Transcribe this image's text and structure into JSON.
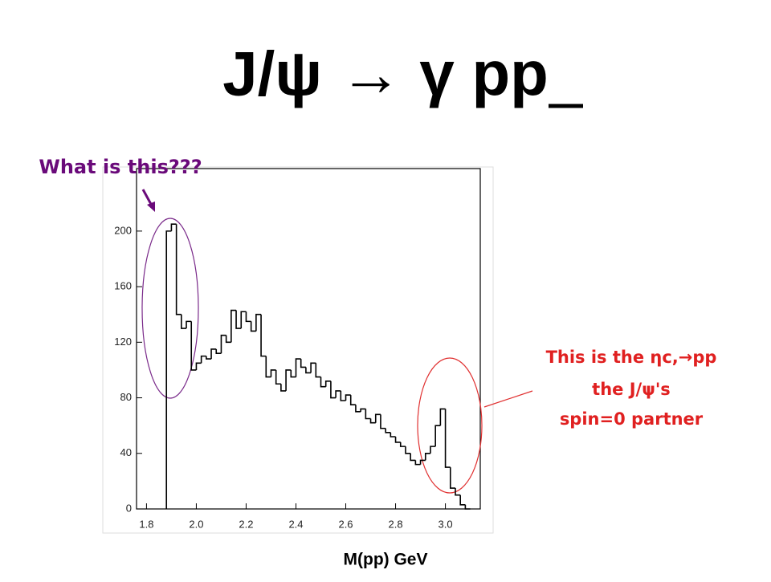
{
  "chart_data": {
    "type": "histogram",
    "title": "J/ψ → γ pp",
    "xlabel": "M(pp) GeV",
    "annotations": [
      "What is this???",
      "This is the ηc,→pp",
      "the J/ψ's",
      "spin=0 partner"
    ],
    "bins": [
      1.88,
      1.9,
      1.92,
      1.94,
      1.96,
      1.98,
      2.0,
      2.02,
      2.04,
      2.06,
      2.08,
      2.1,
      2.12,
      2.14,
      2.16,
      2.18,
      2.2,
      2.22,
      2.24,
      2.26,
      2.28,
      2.3,
      2.32,
      2.34,
      2.36,
      2.38,
      2.4,
      2.42,
      2.44,
      2.46,
      2.48,
      2.5,
      2.52,
      2.54,
      2.56,
      2.58,
      2.6,
      2.62,
      2.64,
      2.66,
      2.68,
      2.7,
      2.72,
      2.74,
      2.76,
      2.78,
      2.8,
      2.82,
      2.84,
      2.86,
      2.88,
      2.9,
      2.92,
      2.94,
      2.96,
      2.98,
      3.0,
      3.02,
      3.04,
      3.06,
      3.08,
      3.1
    ],
    "values": [
      200,
      205,
      140,
      130,
      135,
      100,
      105,
      110,
      108,
      115,
      112,
      125,
      120,
      143,
      130,
      142,
      135,
      128,
      140,
      110,
      95,
      100,
      90,
      85,
      100,
      95,
      108,
      102,
      98,
      105,
      95,
      88,
      92,
      80,
      85,
      78,
      82,
      75,
      70,
      72,
      65,
      62,
      68,
      58,
      55,
      52,
      48,
      45,
      40,
      35,
      32,
      35,
      40,
      45,
      60,
      72,
      30,
      15,
      10,
      3,
      0
    ],
    "color": "#000000",
    "xlim": [
      1.76,
      3.14
    ],
    "ylim": [
      0,
      245
    ],
    "xticks": [
      1.8,
      {
        "value": 2,
        "label": "2.0"
      },
      2.2,
      2.4,
      2.6,
      2.8,
      {
        "value": 3,
        "label": "3.0"
      }
    ],
    "yticks": [
      0,
      40,
      80,
      120,
      160,
      200
    ]
  }
}
